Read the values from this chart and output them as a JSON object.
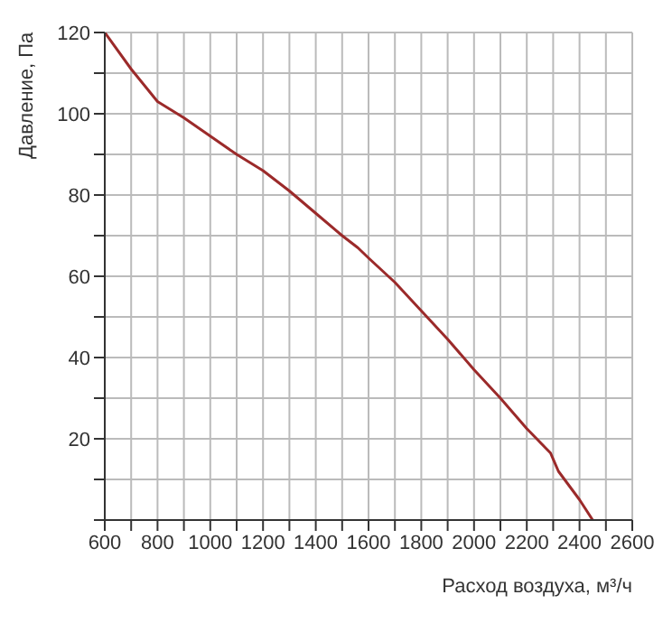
{
  "chart_data": {
    "type": "line",
    "xlabel": "Расход воздуха, м³/ч",
    "ylabel": "Давление, Па",
    "x": [
      600,
      700,
      800,
      900,
      1000,
      1100,
      1200,
      1300,
      1400,
      1500,
      1560,
      1600,
      1700,
      1800,
      1900,
      2000,
      2100,
      2200,
      2290,
      2320,
      2400,
      2450
    ],
    "series": [
      {
        "color": "#9b2a2a",
        "values": [
          120,
          111,
          103,
          99,
          94.5,
          90,
          86,
          81,
          75.5,
          70,
          67,
          64.5,
          58.5,
          51.5,
          44.5,
          37,
          30,
          22.5,
          16.5,
          12,
          5,
          0
        ]
      }
    ],
    "xlim": [
      600,
      2600
    ],
    "xticks": [
      600,
      {
        "value": 700,
        "label": null
      },
      800,
      {
        "value": 900,
        "label": null
      },
      1000,
      {
        "value": 1100,
        "label": null
      },
      1200,
      {
        "value": 1300,
        "label": null
      },
      1400,
      {
        "value": 1500,
        "label": null
      },
      1600,
      {
        "value": 1700,
        "label": null
      },
      1800,
      {
        "value": 1900,
        "label": null
      },
      2000,
      {
        "value": 2100,
        "label": null
      },
      2200,
      {
        "value": 2300,
        "label": null
      },
      2400,
      {
        "value": 2500,
        "label": null
      },
      2600
    ],
    "ylim": [
      0,
      120
    ],
    "yticks": [
      {
        "value": 0,
        "label": null
      },
      {
        "value": 10,
        "label": null
      },
      20,
      {
        "value": 30,
        "label": null
      },
      40,
      {
        "value": 50,
        "label": null
      },
      60,
      {
        "value": 70,
        "label": null
      },
      80,
      {
        "value": 90,
        "label": null
      },
      100,
      {
        "value": 110,
        "label": null
      },
      120
    ],
    "grid": true,
    "marker": "none",
    "line_style": "solid",
    "legend": false
  }
}
